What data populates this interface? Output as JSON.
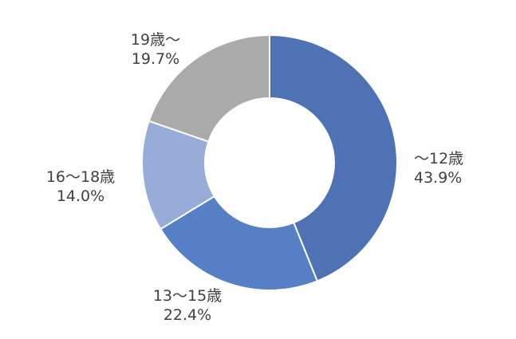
{
  "chart_data": {
    "type": "pie",
    "donut": true,
    "title": "",
    "slices": [
      {
        "label": "～12歳",
        "value": 43.9,
        "display": "43.9%",
        "color": "#4e72b4"
      },
      {
        "label": "13～15歳",
        "value": 22.4,
        "display": "22.4%",
        "color": "#5680c5"
      },
      {
        "label": "16～18歳",
        "value": 14.0,
        "display": "14.0%",
        "color": "#98acd8"
      },
      {
        "label": "19歳～",
        "value": 19.7,
        "display": "19.7%",
        "color": "#aaaaaa"
      }
    ],
    "legend": "none",
    "data_labels": "outside"
  }
}
